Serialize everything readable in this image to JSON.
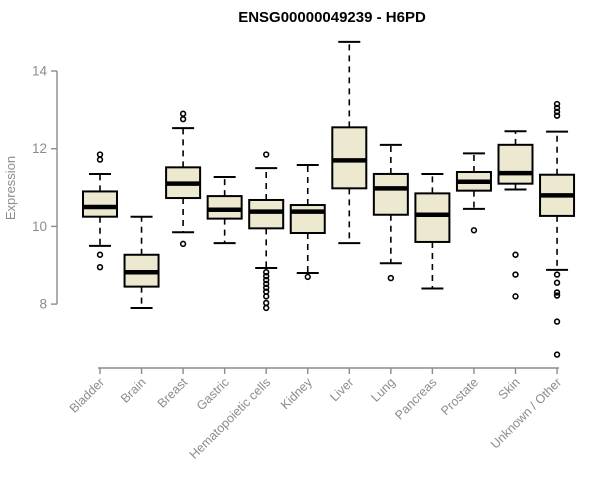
{
  "chart_data": {
    "type": "boxplot",
    "title": "ENSG00000049239 - H6PD",
    "xlabel": "",
    "ylabel": "Expression",
    "ylim": [
      8,
      14
    ],
    "yticks": [
      8,
      10,
      12,
      14
    ],
    "grid": false,
    "legend": "none",
    "categories": [
      "Bladder",
      "Brain",
      "Breast",
      "Gastric",
      "Hematopoietic cells",
      "Kidney",
      "Liver",
      "Lung",
      "Pancreas",
      "Prostate",
      "Skin",
      "Unknown / Other"
    ],
    "boxes": [
      {
        "label": "Bladder",
        "whislo": 9.5,
        "q1": 10.25,
        "med": 10.5,
        "q3": 10.9,
        "whishi": 11.35,
        "outliers": [
          11.85,
          11.72,
          9.27,
          8.95
        ]
      },
      {
        "label": "Brain",
        "whislo": 7.9,
        "q1": 8.45,
        "med": 8.82,
        "q3": 9.27,
        "whishi": 10.25,
        "outliers": []
      },
      {
        "label": "Breast",
        "whislo": 9.85,
        "q1": 10.73,
        "med": 11.1,
        "q3": 11.52,
        "whishi": 12.53,
        "outliers": [
          12.9,
          12.76,
          9.55
        ]
      },
      {
        "label": "Gastric",
        "whislo": 9.57,
        "q1": 10.2,
        "med": 10.43,
        "q3": 10.78,
        "whishi": 11.27,
        "outliers": []
      },
      {
        "label": "Hematopoietic cells",
        "whislo": 8.93,
        "q1": 9.95,
        "med": 10.38,
        "q3": 10.68,
        "whishi": 11.5,
        "outliers": [
          11.85,
          8.82,
          8.72,
          8.62,
          8.52,
          8.42,
          8.32,
          8.2,
          8.03,
          7.9
        ]
      },
      {
        "label": "Kidney",
        "whislo": 8.8,
        "q1": 9.83,
        "med": 10.38,
        "q3": 10.55,
        "whishi": 11.58,
        "outliers": [
          8.7
        ]
      },
      {
        "label": "Liver",
        "whislo": 9.57,
        "q1": 10.98,
        "med": 11.7,
        "q3": 12.55,
        "whishi": 14.75,
        "outliers": []
      },
      {
        "label": "Lung",
        "whislo": 9.05,
        "q1": 10.3,
        "med": 10.98,
        "q3": 11.35,
        "whishi": 12.1,
        "outliers": [
          8.67
        ]
      },
      {
        "label": "Pancreas",
        "whislo": 8.4,
        "q1": 9.6,
        "med": 10.3,
        "q3": 10.85,
        "whishi": 11.35,
        "outliers": []
      },
      {
        "label": "Prostate",
        "whislo": 10.45,
        "q1": 10.92,
        "med": 11.15,
        "q3": 11.4,
        "whishi": 11.88,
        "outliers": [
          9.9
        ]
      },
      {
        "label": "Skin",
        "whislo": 10.95,
        "q1": 11.1,
        "med": 11.37,
        "q3": 12.1,
        "whishi": 12.45,
        "outliers": [
          9.27,
          8.76,
          8.2
        ]
      },
      {
        "label": "Unknown / Other",
        "whislo": 8.88,
        "q1": 10.27,
        "med": 10.8,
        "q3": 11.33,
        "whishi": 12.44,
        "outliers": [
          13.15,
          13.05,
          12.95,
          12.85,
          8.76,
          8.55,
          8.3,
          8.22,
          7.55,
          6.7
        ]
      }
    ],
    "colors": {
      "box_fill": "#EDE9D0",
      "box_stroke": "#000000",
      "median": "#000000",
      "whisker": "#000000",
      "outlier": "#000000",
      "axis": "#8C8C8C",
      "tick_text": "#8C8C8C",
      "title": "#000000",
      "background": "#FFFFFF"
    }
  }
}
